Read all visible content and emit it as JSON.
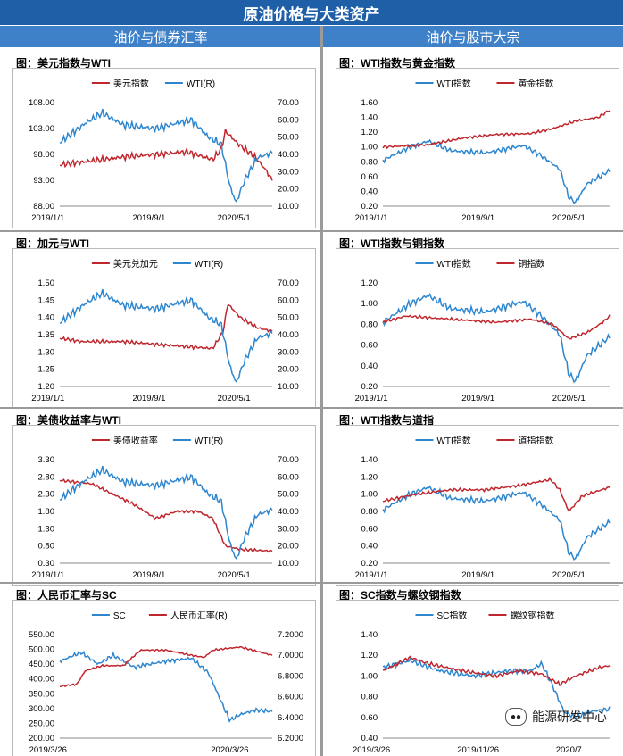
{
  "header": {
    "title": "原油价格与大类资产"
  },
  "columns": {
    "left": "油价与债券汇率",
    "right": "油价与股市大宗"
  },
  "watermark": {
    "text": "能源研发中心"
  },
  "colors": {
    "red": "#c0262d",
    "blue": "#2e86cf",
    "header": "#1f5fa8",
    "subheader": "#3f81c9"
  },
  "chart_data": [
    {
      "type": "line",
      "title": "图：美元指数与WTI",
      "series": [
        {
          "name": "美元指数",
          "axis": "left",
          "color": "#c0262d",
          "shape": "usd"
        },
        {
          "name": "WTI(R)",
          "axis": "right",
          "color": "#2e86cf",
          "shape": "wti"
        }
      ],
      "left_ticks": [
        "108.00",
        "103.00",
        "98.00",
        "93.00",
        "88.00"
      ],
      "left_range": [
        88,
        108
      ],
      "right_ticks": [
        "70.00",
        "60.00",
        "50.00",
        "40.00",
        "30.00",
        "20.00",
        "10.00"
      ],
      "right_range": [
        10,
        70
      ],
      "x_ticks": [
        "2019/1/1",
        "2019/9/1",
        "2020/5/1"
      ]
    },
    {
      "type": "line",
      "title": "图：WTI指数与黄金指数",
      "series": [
        {
          "name": "WTI指数",
          "axis": "left",
          "color": "#2e86cf",
          "shape": "wti_idx"
        },
        {
          "name": "黄金指数",
          "axis": "left",
          "color": "#c0262d",
          "shape": "gold"
        }
      ],
      "left_ticks": [
        "1.60",
        "1.40",
        "1.20",
        "1.00",
        "0.80",
        "0.60",
        "0.40",
        "0.20"
      ],
      "left_range": [
        0.2,
        1.6
      ],
      "right_ticks": [],
      "x_ticks": [
        "2019/1/1",
        "2019/9/1",
        "2020/5/1"
      ]
    },
    {
      "type": "line",
      "title": "图：加元与WTI",
      "series": [
        {
          "name": "美元兑加元",
          "axis": "left",
          "color": "#c0262d",
          "shape": "cad"
        },
        {
          "name": "WTI(R)",
          "axis": "right",
          "color": "#2e86cf",
          "shape": "wti"
        }
      ],
      "left_ticks": [
        "1.50",
        "1.45",
        "1.40",
        "1.35",
        "1.30",
        "1.25",
        "1.20"
      ],
      "left_range": [
        1.2,
        1.5
      ],
      "right_ticks": [
        "70.00",
        "60.00",
        "50.00",
        "40.00",
        "30.00",
        "20.00",
        "10.00"
      ],
      "right_range": [
        10,
        70
      ],
      "x_ticks": [
        "2019/1/1",
        "2019/9/1",
        "2020/5/1"
      ]
    },
    {
      "type": "line",
      "title": "图：WTI指数与铜指数",
      "series": [
        {
          "name": "WTI指数",
          "axis": "left",
          "color": "#2e86cf",
          "shape": "wti_idx"
        },
        {
          "name": "铜指数",
          "axis": "left",
          "color": "#c0262d",
          "shape": "copper"
        }
      ],
      "left_ticks": [
        "1.20",
        "1.00",
        "0.80",
        "0.60",
        "0.40",
        "0.20"
      ],
      "left_range": [
        0.2,
        1.2
      ],
      "right_ticks": [],
      "x_ticks": [
        "2019/1/1",
        "2019/9/1",
        "2020/5/1"
      ]
    },
    {
      "type": "line",
      "title": "图：美债收益率与WTI",
      "series": [
        {
          "name": "美债收益率",
          "axis": "left",
          "color": "#c0262d",
          "shape": "ust"
        },
        {
          "name": "WTI(R)",
          "axis": "right",
          "color": "#2e86cf",
          "shape": "wti"
        }
      ],
      "left_ticks": [
        "3.30",
        "2.80",
        "2.30",
        "1.80",
        "1.30",
        "0.80",
        "0.30"
      ],
      "left_range": [
        0.3,
        3.3
      ],
      "right_ticks": [
        "70.00",
        "60.00",
        "50.00",
        "40.00",
        "30.00",
        "20.00",
        "10.00"
      ],
      "right_range": [
        10,
        70
      ],
      "x_ticks": [
        "2019/1/1",
        "2019/9/1",
        "2020/5/1"
      ]
    },
    {
      "type": "line",
      "title": "图：WTI指数与道指",
      "series": [
        {
          "name": "WTI指数",
          "axis": "left",
          "color": "#2e86cf",
          "shape": "wti_idx"
        },
        {
          "name": "道指指数",
          "axis": "left",
          "color": "#c0262d",
          "shape": "dow"
        }
      ],
      "left_ticks": [
        "1.40",
        "1.20",
        "1.00",
        "0.80",
        "0.60",
        "0.40",
        "0.20"
      ],
      "left_range": [
        0.2,
        1.4
      ],
      "right_ticks": [],
      "x_ticks": [
        "2019/1/1",
        "2019/9/1",
        "2020/5/1"
      ]
    },
    {
      "type": "line",
      "title": "图：人民币汇率与SC",
      "series": [
        {
          "name": "SC",
          "axis": "left",
          "color": "#2e86cf",
          "shape": "sc"
        },
        {
          "name": "人民币汇率(R)",
          "axis": "right",
          "color": "#c0262d",
          "shape": "cny"
        }
      ],
      "left_ticks": [
        "550.00",
        "500.00",
        "450.00",
        "400.00",
        "350.00",
        "300.00",
        "250.00",
        "200.00"
      ],
      "left_range": [
        200,
        550
      ],
      "right_ticks": [
        "7.2000",
        "7.0000",
        "6.8000",
        "6.6000",
        "6.4000",
        "6.2000"
      ],
      "right_range": [
        6.2,
        7.2
      ],
      "x_ticks": [
        "2019/3/26",
        "2020/3/26"
      ]
    },
    {
      "type": "line",
      "title": "图：SC指数与螺纹钢指数",
      "series": [
        {
          "name": "SC指数",
          "axis": "left",
          "color": "#2e86cf",
          "shape": "sc_idx"
        },
        {
          "name": "螺纹钢指数",
          "axis": "left",
          "color": "#c0262d",
          "shape": "rebar"
        }
      ],
      "left_ticks": [
        "1.40",
        "1.20",
        "1.00",
        "0.80",
        "0.60",
        "0.40"
      ],
      "left_range": [
        0.4,
        1.4
      ],
      "right_ticks": [],
      "x_ticks": [
        "2019/3/26",
        "2019/11/26",
        "2020/7"
      ]
    }
  ]
}
